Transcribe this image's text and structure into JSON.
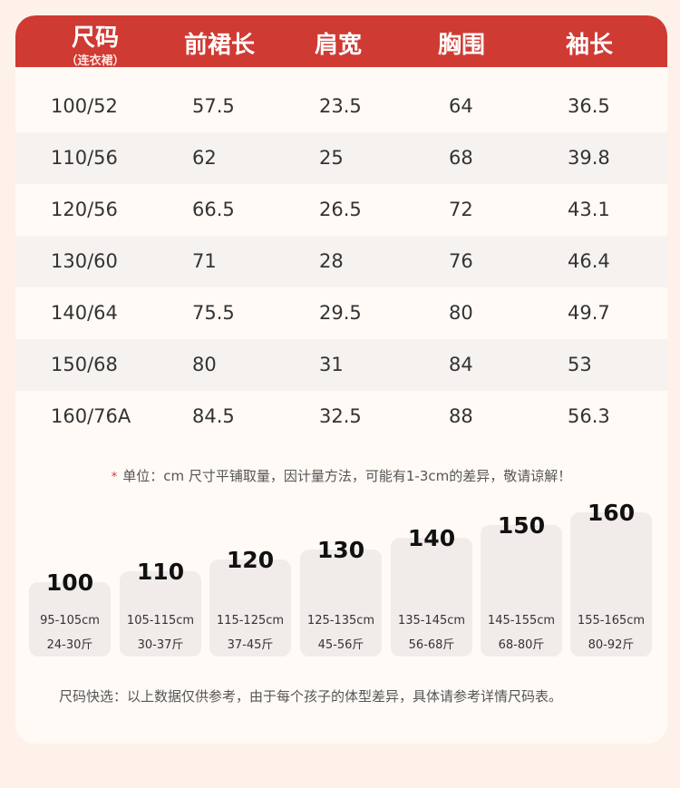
{
  "header": {
    "col1": "尺码",
    "col1_sub": "（连衣裙）",
    "col2": "前裙长",
    "col3": "肩宽",
    "col4": "胸围",
    "col5": "袖长"
  },
  "rows": [
    [
      "100/52",
      "57.5",
      "23.5",
      "64",
      "36.5"
    ],
    [
      "110/56",
      "62",
      "25",
      "68",
      "39.8"
    ],
    [
      "120/56",
      "66.5",
      "26.5",
      "72",
      "43.1"
    ],
    [
      "130/60",
      "71",
      "28",
      "76",
      "46.4"
    ],
    [
      "140/64",
      "75.5",
      "29.5",
      "80",
      "49.7"
    ],
    [
      "150/68",
      "80",
      "31",
      "84",
      "53"
    ],
    [
      "160/76A",
      "84.5",
      "32.5",
      "88",
      "56.3"
    ]
  ],
  "note": {
    "star": "*",
    "text": "单位：cm 尺寸平铺取量，因计量方法，可能有1-3cm的差异，敬请谅解！"
  },
  "sizes": [
    {
      "num": "100",
      "height": "95-105cm",
      "weight": "24-30斤"
    },
    {
      "num": "110",
      "height": "105-115cm",
      "weight": "30-37斤"
    },
    {
      "num": "120",
      "height": "115-125cm",
      "weight": "37-45斤"
    },
    {
      "num": "130",
      "height": "125-135cm",
      "weight": "45-56斤"
    },
    {
      "num": "140",
      "height": "135-145cm",
      "weight": "56-68斤"
    },
    {
      "num": "150",
      "height": "145-155cm",
      "weight": "68-80斤"
    },
    {
      "num": "160",
      "height": "155-165cm",
      "weight": "80-92斤"
    }
  ],
  "footnote": "尺码快选：以上数据仅供参考，由于每个孩子的体型差异，具体请参考详情尺码表。",
  "colors": {
    "header_bg": "#cf3a33",
    "page_bg": "#fdf1e9",
    "card_bg": "#fffaf6",
    "star": "#d0392f"
  }
}
